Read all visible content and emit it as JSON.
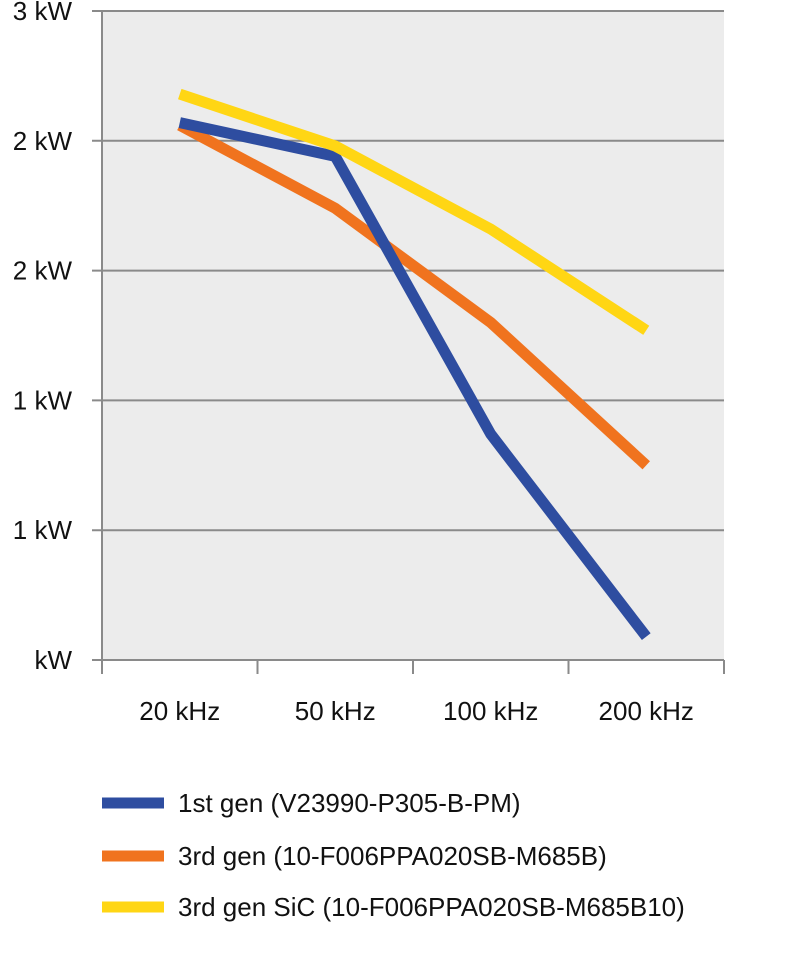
{
  "chart_data": {
    "type": "line",
    "title": "",
    "xlabel": "",
    "ylabel": "",
    "categories": [
      "20 kHz",
      "50 kHz",
      "100 kHz",
      "200 kHz"
    ],
    "y_tick_labels": [
      "kW",
      "1 kW",
      "1 kW",
      "2 kW",
      "2 kW",
      "3 kW"
    ],
    "y_tick_values": [
      0,
      0.5,
      1.0,
      1.5,
      2.0,
      2.5
    ],
    "ylim": [
      0,
      2.5
    ],
    "grid": true,
    "legend_position": "bottom",
    "series": [
      {
        "name": "1st gen (V23990-P305-B-PM)",
        "color": "#2e4da0",
        "values": [
          2.07,
          1.94,
          0.87,
          0.09
        ]
      },
      {
        "name": "3rd gen (10-F006PPA020SB-M685B)",
        "color": "#f0731e",
        "values": [
          2.06,
          1.74,
          1.3,
          0.75
        ]
      },
      {
        "name": "3rd gen SiC (10-F006PPA020SB-M685B10)",
        "color": "#ffd614",
        "values": [
          2.18,
          1.98,
          1.66,
          1.27
        ]
      }
    ],
    "colors": {
      "plot_background": "#ececec",
      "gridline": "#8a8a8a",
      "axis": "#8a8a8a"
    }
  }
}
